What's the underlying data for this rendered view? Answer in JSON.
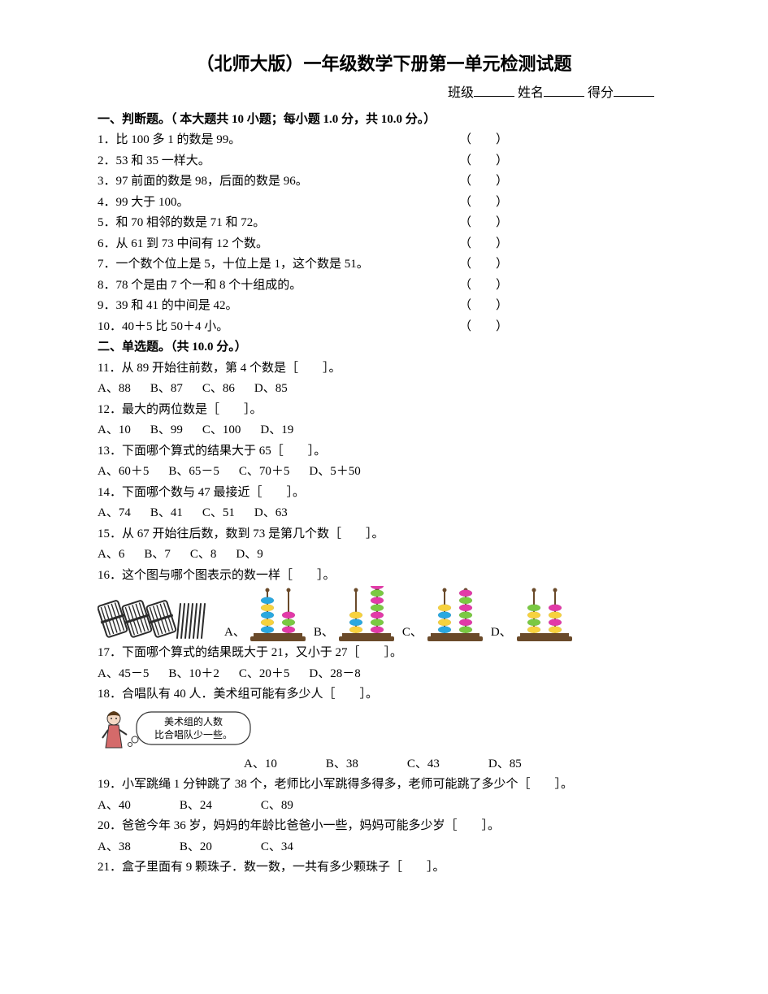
{
  "title": "（北师大版）一年级数学下册第一单元检测试题",
  "info": {
    "class_label": "班级",
    "name_label": "姓名",
    "score_label": "得分"
  },
  "section1": {
    "head": "一、判断题。（ 本大题共 10 小题；每小题 1.0 分，共 10.0 分。）",
    "items": [
      "1．比 100 多 1 的数是 99。",
      "2．53 和 35 一样大。",
      "3．97 前面的数是 98，后面的数是 96。",
      "4．99 大于 100。",
      "5．和 70 相邻的数是 71 和 72。",
      "6．从 61 到 73 中间有 12 个数。",
      "7．一个数个位上是 5，十位上是 1，这个数是 51。",
      "8．78 个是由 7 个一和 8 个十组成的。",
      "9．39 和 41 的中间是 42。",
      "10．40＋5 比 50＋4 小。"
    ],
    "paren": "（　　）"
  },
  "section2": {
    "head": "二、单选题。（共 10.0 分。）",
    "q11": {
      "stem": "11．从 89 开始往前数，第 4 个数是［　　］。",
      "opts": [
        "A、88",
        "B、87",
        "C、86",
        "D、85"
      ]
    },
    "q12": {
      "stem": "12．最大的两位数是［　　］。",
      "opts": [
        "A、10",
        "B、99",
        "C、100",
        "D、19"
      ]
    },
    "q13": {
      "stem": "13．下面哪个算式的结果大于 65［　　］。",
      "opts": [
        "A、60＋5",
        "B、65－5",
        "C、70＋5",
        "D、5＋50"
      ]
    },
    "q14": {
      "stem": "14．下面哪个数与 47 最接近［　　］。",
      "opts": [
        "A、74",
        "B、41",
        "C、51",
        "D、63"
      ]
    },
    "q15": {
      "stem": "15．从 67 开始往后数，数到 73 是第几个数［　　］。",
      "opts": [
        "A、6",
        "B、7",
        "C、8",
        "D、9"
      ]
    },
    "q16": {
      "stem": "16．这个图与哪个图表示的数一样［　　］。",
      "labels": [
        "A、",
        "B、",
        "C、",
        "D、"
      ],
      "sticks": {
        "bundles": 3,
        "loose": 7,
        "bundle_color": "#2b2b2b",
        "loose_color": "#2b2b2b"
      },
      "abacus_frame": "#6a4a2a",
      "options_beads": {
        "A": {
          "left": [
            "#2aa8e0",
            "#f7d23e",
            "#2aa8e0",
            "#f7d23e",
            "#2aa8e0"
          ],
          "right": [
            "#e23aa8",
            "#7ac943",
            "#e23aa8"
          ]
        },
        "B": {
          "left": [
            "#f7d23e",
            "#2aa8e0",
            "#f7d23e"
          ],
          "right": [
            "#e23aa8",
            "#7ac943",
            "#e23aa8",
            "#7ac943",
            "#e23aa8",
            "#7ac943",
            "#e23aa8"
          ]
        },
        "C": {
          "left": [
            "#f7d23e",
            "#2aa8e0",
            "#f7d23e",
            "#2aa8e0"
          ],
          "right": [
            "#e23aa8",
            "#7ac943",
            "#e23aa8",
            "#7ac943",
            "#e23aa8",
            "#7ac943"
          ]
        },
        "D": {
          "left": [
            "#7ac943",
            "#f7d23e",
            "#7ac943",
            "#f7d23e"
          ],
          "right": [
            "#e23aa8",
            "#f7d23e",
            "#e23aa8",
            "#f7d23e"
          ]
        }
      }
    },
    "q17": {
      "stem": "17．下面哪个算式的结果既大于 21，又小于 27［　　］。",
      "opts": [
        "A、45－5",
        "B、10＋2",
        "C、20＋5",
        "D、28－8"
      ]
    },
    "q18": {
      "stem": "18．合唱队有 40 人．美术组可能有多少人［　　］。",
      "bubble_l1": "美术组的人数",
      "bubble_l2": "比合唱队少一些。",
      "opts": [
        "A、10",
        "B、38",
        "C、43",
        "D、85"
      ]
    },
    "q19": {
      "stem": "19．小军跳绳 1 分钟跳了 38 个，老师比小军跳得多得多，老师可能跳了多少个［　　］。",
      "opts": [
        "A、40",
        "B、24",
        "C、89"
      ]
    },
    "q20": {
      "stem": "20．爸爸今年 36 岁，妈妈的年龄比爸爸小一些，妈妈可能多少岁［　　］。",
      "opts": [
        "A、38",
        "B、20",
        "C、34"
      ]
    },
    "q21": {
      "stem": "21．盒子里面有 9 颗珠子．数一数，一共有多少颗珠子［　　］。"
    }
  },
  "style": {
    "abacus_w": 76,
    "abacus_h": 70,
    "bead_rx": 8,
    "bead_ry": 4.2,
    "rod_gap": 26
  }
}
